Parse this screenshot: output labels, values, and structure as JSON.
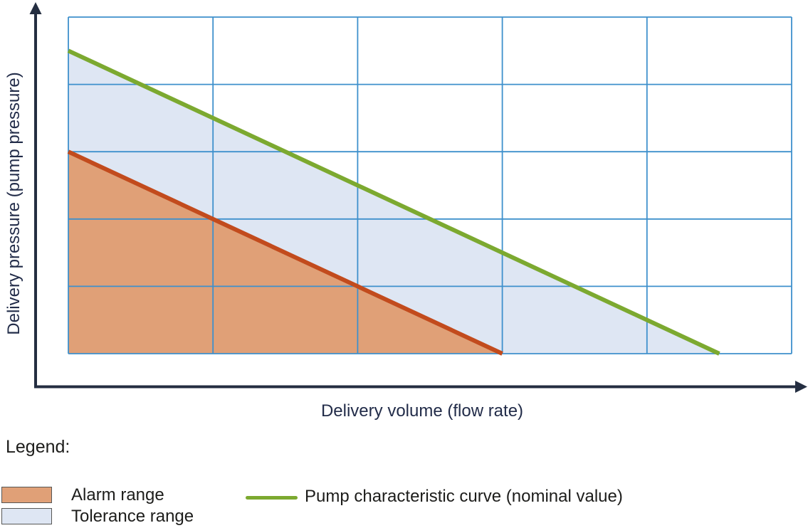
{
  "chart_data": {
    "type": "area",
    "title": "",
    "xlabel": "Delivery volume (flow rate)",
    "ylabel": "Delivery pressure (pump pressure)",
    "x_range": [
      0,
      5
    ],
    "y_range": [
      0,
      5
    ],
    "tick_labels": "none",
    "grid": {
      "columns": 5,
      "rows": 5,
      "color": "#3E90CC",
      "line_width": 1.8
    },
    "axes": {
      "color": "#242E41",
      "line_width": 4,
      "arrows": true
    },
    "legend_position": "bottom",
    "series": [
      {
        "name": "Tolerance range",
        "type": "area",
        "fill_color": "#DEE6F3",
        "points": [
          [
            0,
            4.5
          ],
          [
            4.5,
            0
          ],
          [
            0,
            0
          ]
        ]
      },
      {
        "name": "Alarm range",
        "type": "area",
        "fill_color": "#E0A077",
        "points": [
          [
            0,
            3
          ],
          [
            3,
            0
          ],
          [
            0,
            0
          ]
        ]
      },
      {
        "name": "Alarm range boundary",
        "type": "line",
        "color": "#C24B1D",
        "line_width": 6,
        "points": [
          [
            0,
            3
          ],
          [
            3,
            0
          ]
        ]
      },
      {
        "name": "Pump characteristic curve (nominal value)",
        "type": "line",
        "color": "#7CA930",
        "line_width": 6,
        "points": [
          [
            0,
            4.5
          ],
          [
            4.5,
            0
          ]
        ]
      }
    ]
  },
  "labels": {
    "x_axis": "Delivery volume (flow rate)",
    "y_axis": "Delivery pressure (pump pressure)"
  },
  "legend": {
    "title": "Legend:",
    "items": [
      {
        "swatch": "area",
        "color": "#E0A077",
        "border": "#575756",
        "label": "Alarm range"
      },
      {
        "swatch": "area",
        "color": "#DEE6F3",
        "border": "#575756",
        "label": "Tolerance range"
      },
      {
        "swatch": "line",
        "color": "#7CA930",
        "label": "Pump characteristic curve (nominal value)"
      }
    ]
  }
}
